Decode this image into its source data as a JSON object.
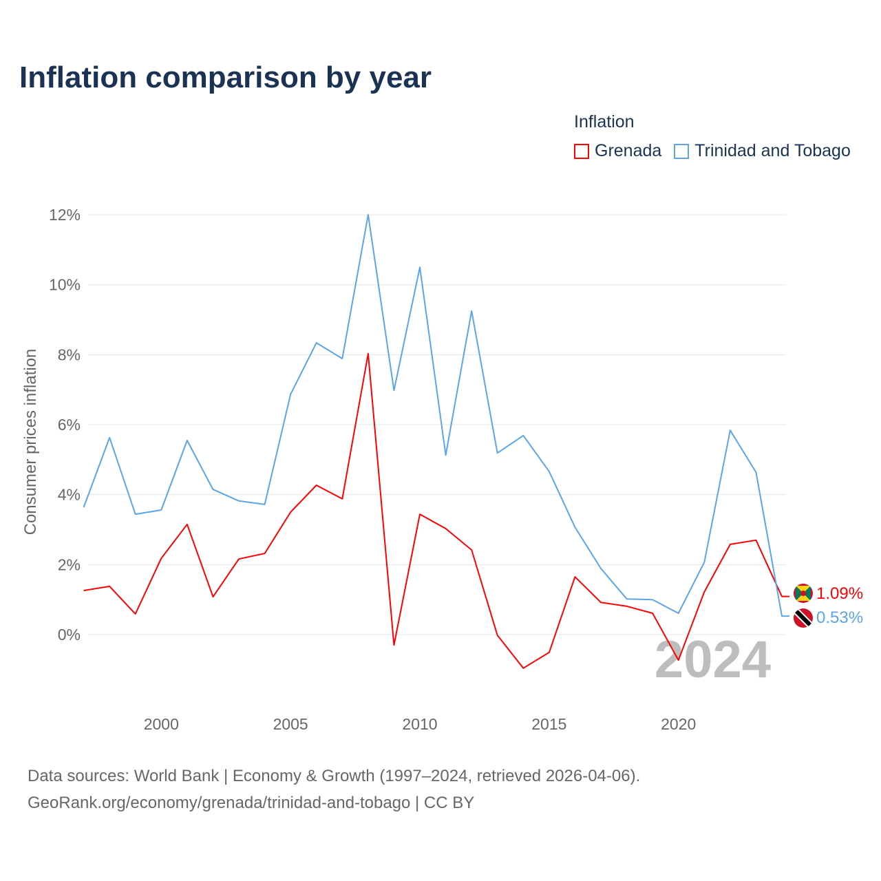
{
  "chart_data": {
    "type": "line",
    "title": "Inflation comparison by year",
    "legend_title": "Inflation",
    "legend_placement": "top-right",
    "ylabel": "Consumer prices inflation",
    "xlabel": "",
    "xlim": [
      1997,
      2024
    ],
    "ylim": [
      -1.9,
      12.2
    ],
    "x_ticks": [
      2000,
      2005,
      2010,
      2015,
      2020
    ],
    "y_ticks": [
      0,
      2,
      4,
      6,
      8,
      10,
      12
    ],
    "y_tick_labels": [
      "0%",
      "2%",
      "4%",
      "6%",
      "8%",
      "10%",
      "12%"
    ],
    "grid": true,
    "year_watermark": "2024",
    "x": [
      1997,
      1998,
      1999,
      2000,
      2001,
      2002,
      2003,
      2004,
      2005,
      2006,
      2007,
      2008,
      2009,
      2010,
      2011,
      2012,
      2013,
      2014,
      2015,
      2016,
      2017,
      2018,
      2019,
      2020,
      2021,
      2022,
      2023,
      2024
    ],
    "series": [
      {
        "name": "Grenada",
        "color": "#ff0000",
        "end_label": "1.09%",
        "values": [
          1.26,
          1.38,
          0.59,
          2.18,
          3.15,
          1.08,
          2.16,
          2.32,
          3.5,
          4.27,
          3.88,
          8.03,
          -0.3,
          3.44,
          3.03,
          2.42,
          -0.02,
          -0.96,
          -0.51,
          1.65,
          0.92,
          0.81,
          0.61,
          -0.73,
          1.22,
          2.58,
          2.7,
          1.09
        ]
      },
      {
        "name": "Trinidad and Tobago",
        "color": "#5aa5e8",
        "end_label": "0.53%",
        "values": [
          3.64,
          5.63,
          3.44,
          3.56,
          5.55,
          4.15,
          3.82,
          3.72,
          6.87,
          8.34,
          7.89,
          12.0,
          6.98,
          10.5,
          5.13,
          9.25,
          5.19,
          5.69,
          4.66,
          3.07,
          1.89,
          1.02,
          1.0,
          0.61,
          2.07,
          5.84,
          4.64,
          0.53
        ]
      }
    ]
  },
  "source": {
    "line1": "Data sources: World Bank | Economy & Growth (1997–2024, retrieved 2026-04-06).",
    "line2": "GeoRank.org/economy/grenada/trinidad-and-tobago | CC BY"
  }
}
